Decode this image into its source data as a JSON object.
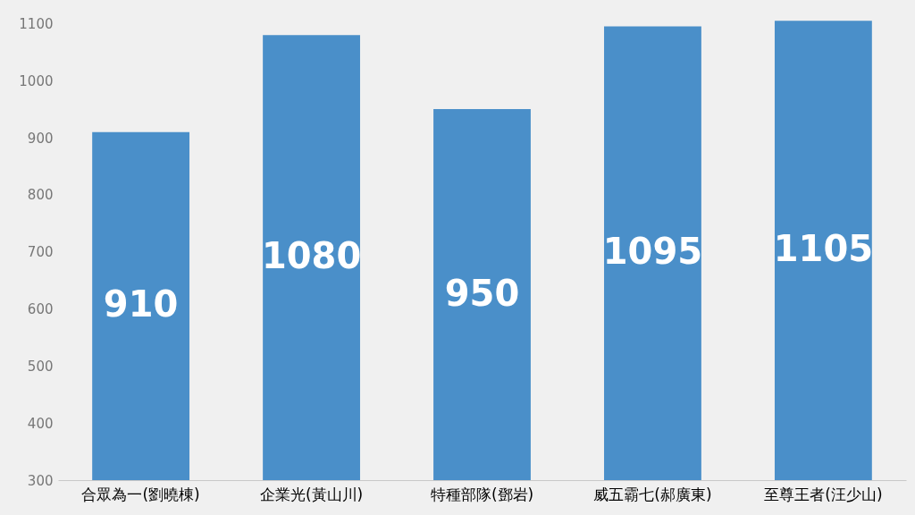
{
  "chart_data": {
    "type": "bar",
    "categories": [
      "合眾為一(劉曉棟)",
      "企業光(黃山川)",
      "特種部隊(鄧岩)",
      "威五霸七(郝廣東)",
      "至尊王者(汪少山)"
    ],
    "values": [
      910,
      1080,
      950,
      1095,
      1105
    ],
    "color": "#4a8fc9",
    "ylim": [
      300,
      1110
    ],
    "yticks": [
      300,
      400,
      500,
      600,
      700,
      800,
      900,
      1000,
      1100
    ],
    "grid": false,
    "data_labels": true
  }
}
